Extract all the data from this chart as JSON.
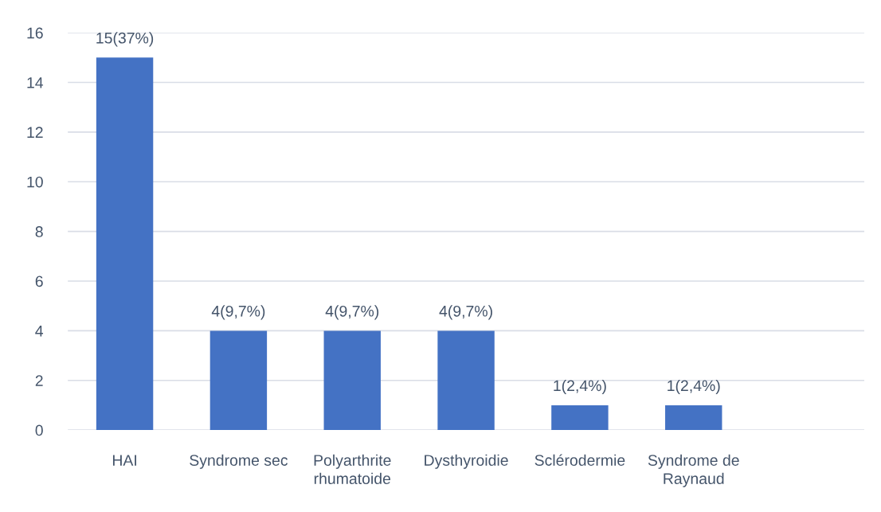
{
  "chart_data": {
    "type": "bar",
    "categories": [
      "HAI",
      "Syndrome sec",
      "Polyarthrite rhumatoide",
      "Dysthyroidie",
      "Sclérodermie",
      "Syndrome de Raynaud",
      null
    ],
    "values": [
      15,
      4,
      4,
      4,
      1,
      1,
      null
    ],
    "value_labels": [
      "15(37%)",
      "4(9,7%)",
      "4(9,7%)",
      "4(9,7%)",
      "1(2,4%)",
      "1(2,4%)",
      null
    ],
    "color": "#4472c4",
    "ylim": [
      0,
      16
    ],
    "yticks": [
      0,
      2,
      4,
      6,
      8,
      10,
      12,
      14,
      16
    ],
    "grid": "y",
    "legend": false
  }
}
